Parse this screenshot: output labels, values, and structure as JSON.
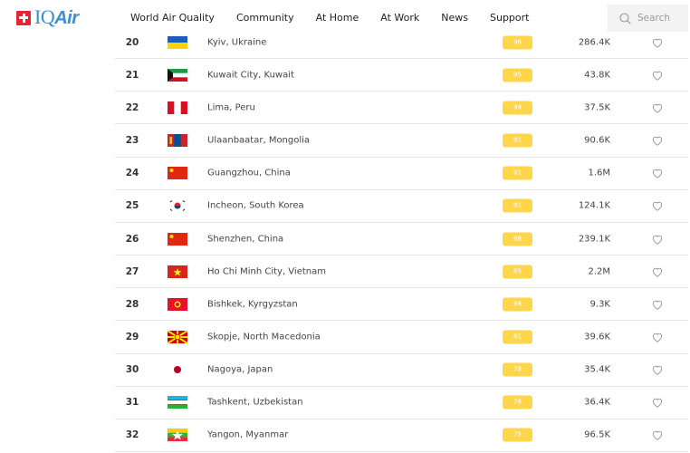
{
  "header": {
    "logo_text": "IQAir",
    "nav": [
      "World Air Quality",
      "Community",
      "At Home",
      "At Work",
      "News",
      "Support"
    ],
    "search_placeholder": "Search"
  },
  "colors": {
    "aqi_moderate": "#fdd64b",
    "brand_blue": "#3a8fd1",
    "brand_red": "#e22631"
  },
  "rows": [
    {
      "rank": "20",
      "flag": "ukraine-flag",
      "city": "Kyiv, Ukraine",
      "aqi": "96",
      "followers": "286.4K"
    },
    {
      "rank": "21",
      "flag": "kuwait-flag",
      "city": "Kuwait City, Kuwait",
      "aqi": "95",
      "followers": "43.8K"
    },
    {
      "rank": "22",
      "flag": "peru-flag",
      "city": "Lima, Peru",
      "aqi": "94",
      "followers": "37.5K"
    },
    {
      "rank": "23",
      "flag": "mongolia-flag",
      "city": "Ulaanbaatar, Mongolia",
      "aqi": "91",
      "followers": "90.6K"
    },
    {
      "rank": "24",
      "flag": "china-flag",
      "city": "Guangzhou, China",
      "aqi": "91",
      "followers": "1.6M"
    },
    {
      "rank": "25",
      "flag": "south-korea-flag",
      "city": "Incheon, South Korea",
      "aqi": "91",
      "followers": "124.1K"
    },
    {
      "rank": "26",
      "flag": "china-flag",
      "city": "Shenzhen, China",
      "aqi": "88",
      "followers": "239.1K"
    },
    {
      "rank": "27",
      "flag": "vietnam-flag",
      "city": "Ho Chi Minh City, Vietnam",
      "aqi": "85",
      "followers": "2.2M"
    },
    {
      "rank": "28",
      "flag": "kyrgyzstan-flag",
      "city": "Bishkek, Kyrgyzstan",
      "aqi": "84",
      "followers": "9.3K"
    },
    {
      "rank": "29",
      "flag": "north-macedonia-flag",
      "city": "Skopje, North Macedonia",
      "aqi": "81",
      "followers": "39.6K"
    },
    {
      "rank": "30",
      "flag": "japan-flag",
      "city": "Nagoya, Japan",
      "aqi": "78",
      "followers": "35.4K"
    },
    {
      "rank": "31",
      "flag": "uzbekistan-flag",
      "city": "Tashkent, Uzbekistan",
      "aqi": "76",
      "followers": "36.4K"
    },
    {
      "rank": "32",
      "flag": "myanmar-flag",
      "city": "Yangon, Myanmar",
      "aqi": "75",
      "followers": "96.5K"
    }
  ]
}
